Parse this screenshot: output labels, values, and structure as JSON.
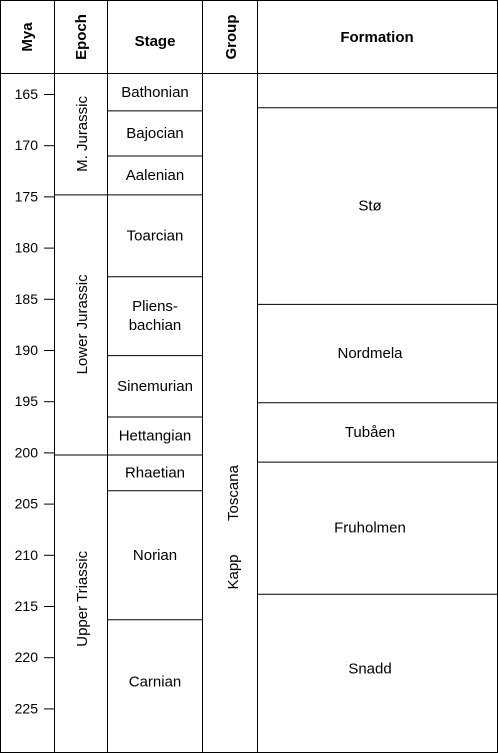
{
  "headers": {
    "mya": "Mya",
    "epoch": "Epoch",
    "stage": "Stage",
    "group": "Group",
    "formation": "Formation"
  },
  "mya_ticks": [
    "165",
    "170",
    "175",
    "180",
    "185",
    "190",
    "195",
    "200",
    "205",
    "210",
    "215",
    "220",
    "225"
  ],
  "epochs": [
    {
      "label": "M. Jurassic",
      "top_mya": 163.0,
      "bottom_mya": 174.8
    },
    {
      "label": "Lower Jurassic",
      "top_mya": 174.8,
      "bottom_mya": 200.2
    },
    {
      "label": "Upper Triassic",
      "top_mya": 200.2,
      "bottom_mya": 228.4
    }
  ],
  "stages": [
    {
      "label": "Bathonian",
      "top_mya": 163.0,
      "bottom_mya": 166.6
    },
    {
      "label": "Bajocian",
      "top_mya": 166.6,
      "bottom_mya": 171.0
    },
    {
      "label": "Aalenian",
      "top_mya": 171.0,
      "bottom_mya": 174.8
    },
    {
      "label": "Toarcian",
      "top_mya": 174.8,
      "bottom_mya": 182.8
    },
    {
      "label": "Pliens-\nbachian",
      "top_mya": 182.8,
      "bottom_mya": 190.5
    },
    {
      "label": "Sinemurian",
      "top_mya": 190.5,
      "bottom_mya": 196.5
    },
    {
      "label": "Hettangian",
      "top_mya": 196.5,
      "bottom_mya": 200.2
    },
    {
      "label": "Rhaetian",
      "top_mya": 200.2,
      "bottom_mya": 203.7
    },
    {
      "label": "Norian",
      "top_mya": 203.7,
      "bottom_mya": 216.3
    },
    {
      "label": "Carnian",
      "top_mya": 216.3,
      "bottom_mya": 228.4
    }
  ],
  "group": {
    "line1": "Toscana",
    "line2": "Kapp",
    "top_mya": 163.0,
    "bottom_mya": 228.4
  },
  "formations": [
    {
      "label": "",
      "top_mya": 163.0,
      "bottom_mya": 166.3
    },
    {
      "label": "Stø",
      "top_mya": 166.3,
      "bottom_mya": 185.5
    },
    {
      "label": "Nordmela",
      "top_mya": 185.5,
      "bottom_mya": 195.1
    },
    {
      "label": "Tubåen",
      "top_mya": 195.1,
      "bottom_mya": 200.9
    },
    {
      "label": "Fruholmen",
      "top_mya": 200.9,
      "bottom_mya": 213.8
    },
    {
      "label": "Snadd",
      "top_mya": 213.8,
      "bottom_mya": 228.4
    }
  ]
}
